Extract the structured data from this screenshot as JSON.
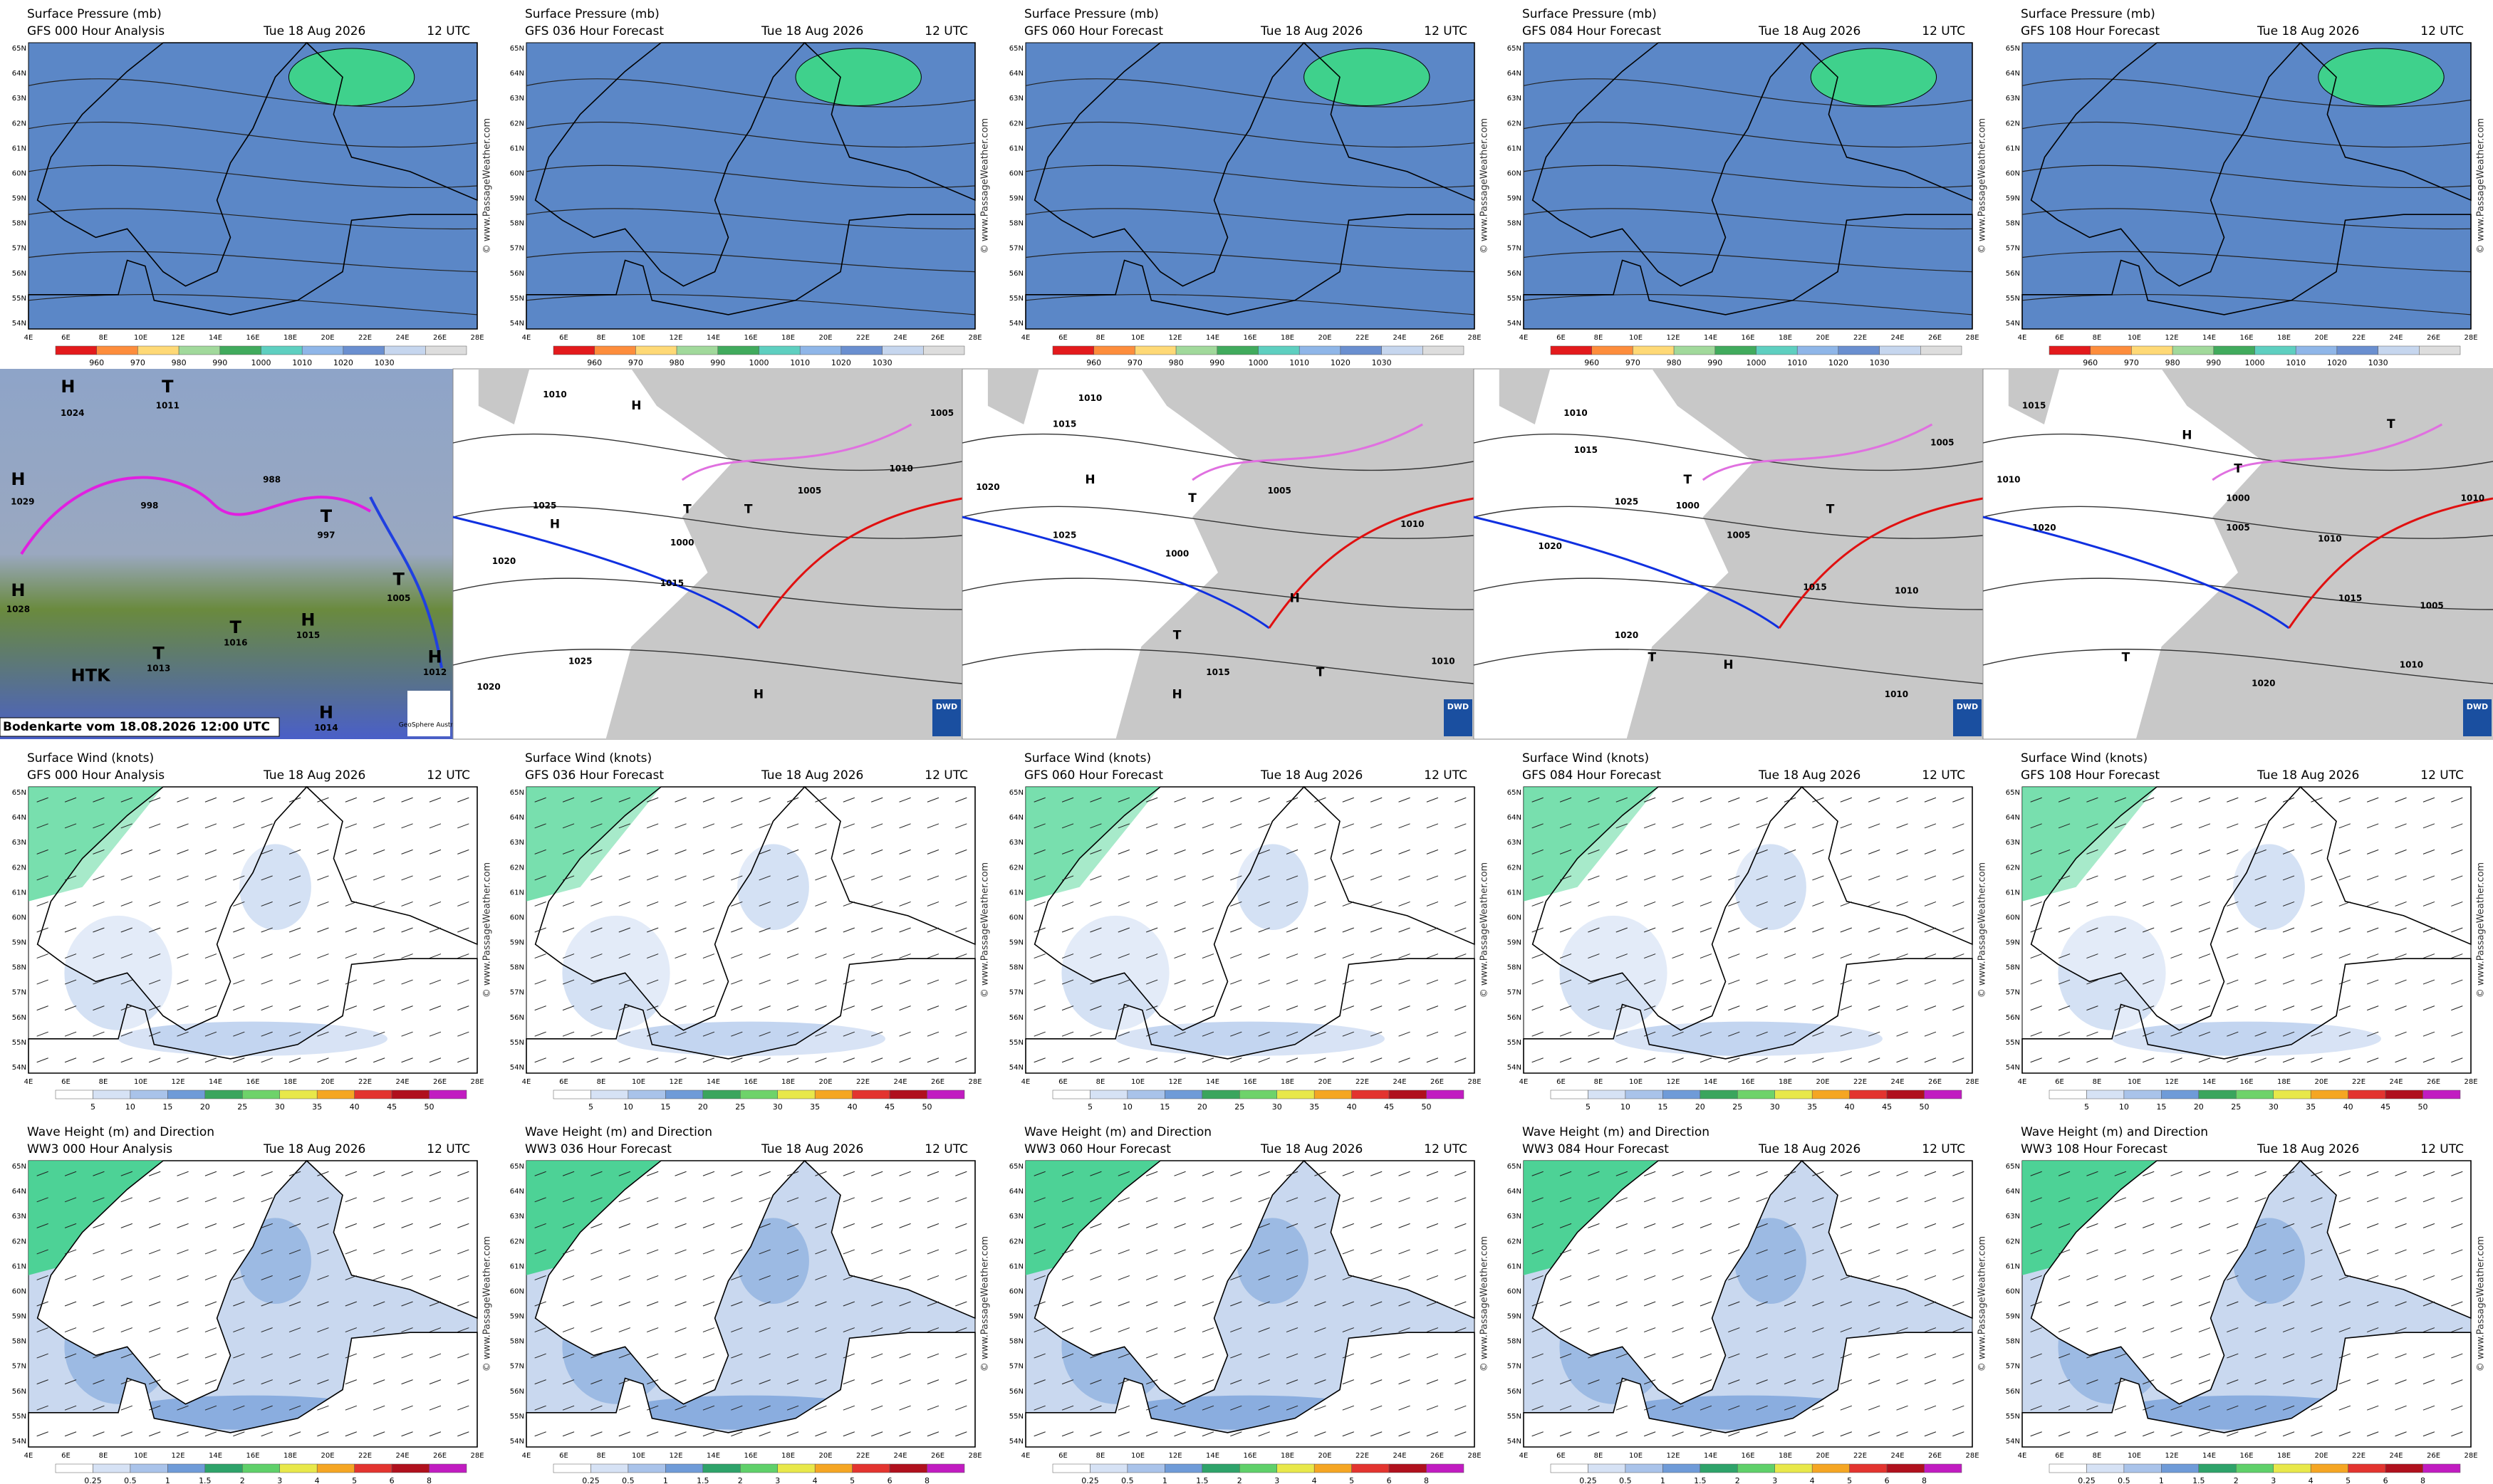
{
  "pressure_row": {
    "title": "Surface Pressure (mb)",
    "panels": [
      {
        "run": "GFS 000 Hour Analysis",
        "date": "Tue 18 Aug 2026",
        "time": "12 UTC"
      },
      {
        "run": "GFS 036 Hour Forecast",
        "date": "Tue 18 Aug 2026",
        "time": "12 UTC"
      },
      {
        "run": "GFS 060 Hour Forecast",
        "date": "Tue 18 Aug 2026",
        "time": "12 UTC"
      },
      {
        "run": "GFS 084 Hour Forecast",
        "date": "Tue 18 Aug 2026",
        "time": "12 UTC"
      },
      {
        "run": "GFS 108 Hour Forecast",
        "date": "Tue 18 Aug 2026",
        "time": "12 UTC"
      }
    ],
    "lat_labels": [
      "65N",
      "64N",
      "63N",
      "62N",
      "61N",
      "60N",
      "59N",
      "58N",
      "57N",
      "56N",
      "55N",
      "54N"
    ],
    "lon_labels": [
      "4E",
      "6E",
      "8E",
      "10E",
      "12E",
      "14E",
      "16E",
      "18E",
      "20E",
      "22E",
      "24E",
      "26E",
      "28E"
    ],
    "watermark": "© www.PassageWeather.com",
    "colorbar_labels": [
      "960",
      "970",
      "980",
      "990",
      "1000",
      "1010",
      "1020",
      "1030"
    ]
  },
  "synoptic_row": {
    "satellite": {
      "caption": "Bodenkarte vom 18.08.2026 12:00 UTC",
      "logo": "GeoSphere Austria",
      "labels": [
        "H",
        "1024",
        "T",
        "1011",
        "H",
        "1029",
        "H",
        "1028",
        "998",
        "988",
        "T",
        "997",
        "HTK",
        "T",
        "1013",
        "T",
        "1016",
        "H",
        "1015",
        "T",
        "1005",
        "H",
        "1012",
        "H",
        "1014"
      ]
    },
    "dwd_panels": [
      {
        "logo": "DWD",
        "labels": [
          "1010",
          "H",
          "1025",
          "H",
          "1020",
          "T",
          "1000",
          "1015",
          "1005",
          "T",
          "1010",
          "1005",
          "1025",
          "H",
          "1020"
        ]
      },
      {
        "logo": "DWD",
        "labels": [
          "1010",
          "1015",
          "H",
          "1025",
          "1020",
          "T",
          "1005",
          "1000",
          "H",
          "T",
          "1010",
          "1015",
          "1010",
          "T",
          "H"
        ]
      },
      {
        "logo": "DWD",
        "labels": [
          "1010",
          "1015",
          "1025",
          "1020",
          "T",
          "1000",
          "1005",
          "T",
          "1010",
          "1015",
          "1020",
          "1010",
          "T",
          "H",
          "1005"
        ]
      },
      {
        "logo": "DWD",
        "labels": [
          "1010",
          "1015",
          "1020",
          "T",
          "1000",
          "1005",
          "H",
          "1010",
          "T",
          "1015",
          "1010",
          "1020",
          "T",
          "1005",
          "1010"
        ]
      }
    ]
  },
  "wind_row": {
    "title": "Surface Wind (knots)",
    "panels": [
      {
        "run": "GFS 000 Hour Analysis",
        "date": "Tue 18 Aug 2026",
        "time": "12 UTC"
      },
      {
        "run": "GFS 036 Hour Forecast",
        "date": "Tue 18 Aug 2026",
        "time": "12 UTC"
      },
      {
        "run": "GFS 060 Hour Forecast",
        "date": "Tue 18 Aug 2026",
        "time": "12 UTC"
      },
      {
        "run": "GFS 084 Hour Forecast",
        "date": "Tue 18 Aug 2026",
        "time": "12 UTC"
      },
      {
        "run": "GFS 108 Hour Forecast",
        "date": "Tue 18 Aug 2026",
        "time": "12 UTC"
      }
    ],
    "lat_labels": [
      "65N",
      "64N",
      "63N",
      "62N",
      "61N",
      "60N",
      "59N",
      "58N",
      "57N",
      "56N",
      "55N",
      "54N"
    ],
    "lon_labels": [
      "4E",
      "6E",
      "8E",
      "10E",
      "12E",
      "14E",
      "16E",
      "18E",
      "20E",
      "22E",
      "24E",
      "26E",
      "28E"
    ],
    "watermark": "© www.PassageWeather.com",
    "colorbar_labels": [
      "5",
      "10",
      "15",
      "20",
      "25",
      "30",
      "35",
      "40",
      "45",
      "50"
    ]
  },
  "wave_row": {
    "title": "Wave Height (m) and Direction",
    "panels": [
      {
        "run": "WW3 000 Hour Analysis",
        "date": "Tue 18 Aug 2026",
        "time": "12 UTC"
      },
      {
        "run": "WW3 036 Hour Forecast",
        "date": "Tue 18 Aug 2026",
        "time": "12 UTC"
      },
      {
        "run": "WW3 060 Hour Forecast",
        "date": "Tue 18 Aug 2026",
        "time": "12 UTC"
      },
      {
        "run": "WW3 084 Hour Forecast",
        "date": "Tue 18 Aug 2026",
        "time": "12 UTC"
      },
      {
        "run": "WW3 108 Hour Forecast",
        "date": "Tue 18 Aug 2026",
        "time": "12 UTC"
      }
    ],
    "lat_labels": [
      "65N",
      "64N",
      "63N",
      "62N",
      "61N",
      "60N",
      "59N",
      "58N",
      "57N",
      "56N",
      "55N",
      "54N"
    ],
    "lon_labels": [
      "4E",
      "6E",
      "8E",
      "10E",
      "12E",
      "14E",
      "16E",
      "18E",
      "20E",
      "22E",
      "24E",
      "26E",
      "28E"
    ],
    "watermark": "© www.PassageWeather.com",
    "colorbar_labels": [
      "0.25",
      "0.5",
      "1",
      "1.5",
      "2",
      "3",
      "4",
      "5",
      "6",
      "8"
    ]
  }
}
